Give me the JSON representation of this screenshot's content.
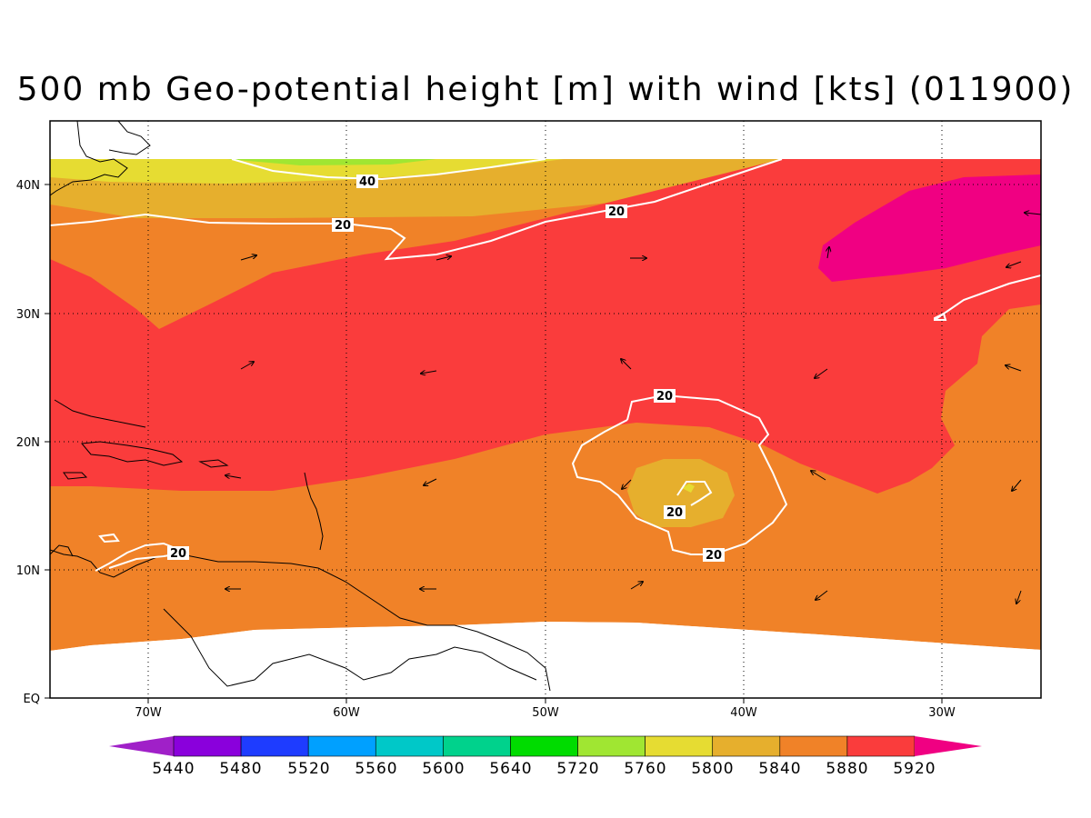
{
  "title": "500 mb Geo-potential height [m] with wind [kts] (011900)",
  "map": {
    "lon_labels": [
      "70W",
      "60W",
      "50W",
      "40W",
      "30W"
    ],
    "lat_labels": [
      "EQ",
      "10N",
      "20N",
      "30N",
      "40N"
    ],
    "contour_labels": [
      "40",
      "20",
      "20",
      "20",
      "20",
      "20",
      "20"
    ]
  },
  "colorbar": {
    "levels": [
      "5440",
      "5480",
      "5520",
      "5560",
      "5600",
      "5640",
      "5720",
      "5760",
      "5800",
      "5840",
      "5880",
      "5920"
    ],
    "colors": [
      "#a020c8",
      "#8a00dc",
      "#1e3cff",
      "#00a0ff",
      "#00c8c8",
      "#00d28c",
      "#00dc00",
      "#a0e632",
      "#e6dc32",
      "#e6af2d",
      "#f08228",
      "#fa3c3c",
      "#f00082"
    ]
  }
}
